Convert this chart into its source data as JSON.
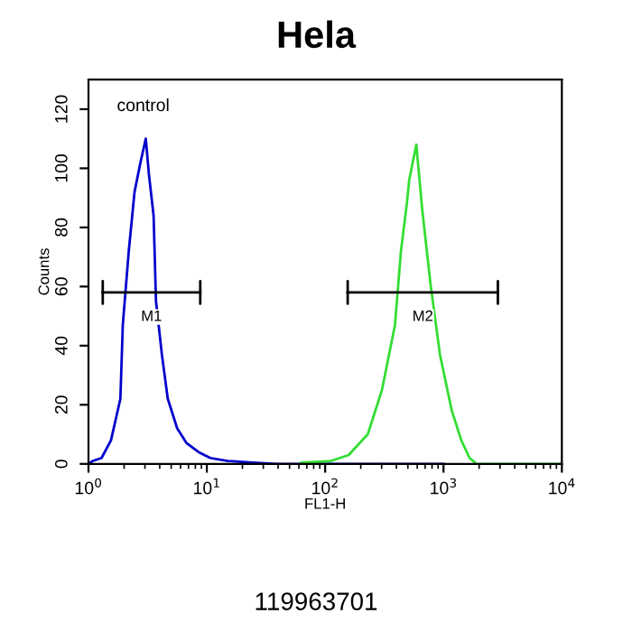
{
  "chart_data": {
    "type": "line",
    "title": "Hela",
    "xlabel": "FL1-H",
    "ylabel": "Counts",
    "log": "x",
    "xlim": [
      1,
      10000
    ],
    "xticks": [
      {
        "value": 1,
        "label": "10$^{0}$"
      },
      {
        "value": 10,
        "label": "10$^{1}$"
      },
      {
        "value": 100,
        "label": "10$^{2}$"
      },
      {
        "value": 1000,
        "label": "10$^{3}$"
      },
      {
        "value": 10000,
        "label": "10$^{4}$"
      }
    ],
    "ylim": [
      0,
      130
    ],
    "yticks": [
      0,
      20,
      40,
      60,
      80,
      100,
      120
    ],
    "grid": false,
    "legend": false,
    "series": [
      {
        "color": "#0000cc",
        "x": [
          1.0,
          1.09,
          1.29,
          1.55,
          1.86,
          1.95,
          2.19,
          2.45,
          2.75,
          3.05,
          3.24,
          3.55,
          3.72,
          4.17,
          4.68,
          5.62,
          6.76,
          8.51,
          10.7,
          15.1,
          24.5,
          38.9,
          1000
        ],
        "values": [
          0,
          1,
          2,
          8,
          22,
          47,
          72,
          92,
          102,
          110,
          98,
          84,
          55,
          37,
          22,
          12,
          7,
          4,
          2,
          1,
          0.4,
          0,
          0
        ]
      },
      {
        "color": "#33dd33",
        "x": [
          63,
          112,
          158,
          229,
          302,
          389,
          437,
          490,
          513,
          589,
          661,
          776,
          933,
          1175,
          1413,
          1660,
          1905,
          10000
        ],
        "values": [
          0.4,
          1,
          3,
          10,
          25,
          47,
          72,
          88,
          96,
          108,
          86,
          61,
          37,
          18,
          8,
          2,
          0,
          0
        ]
      },
      {
        "name": "M1",
        "color": "#000000",
        "x": [
          1.32,
          8.8
        ],
        "values": [
          58,
          58
        ]
      },
      {
        "name": "M2",
        "color": "#000000",
        "x": [
          155,
          2880
        ],
        "values": [
          58,
          58
        ]
      }
    ],
    "annotations": [
      "control",
      "119963701"
    ]
  }
}
